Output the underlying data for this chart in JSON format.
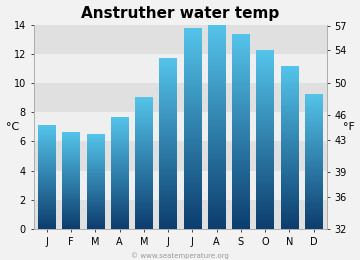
{
  "title": "Anstruther water temp",
  "months": [
    "J",
    "F",
    "M",
    "A",
    "M",
    "J",
    "J",
    "A",
    "S",
    "O",
    "N",
    "D"
  ],
  "values_c": [
    7.1,
    6.6,
    6.5,
    7.6,
    9.0,
    11.7,
    13.7,
    13.9,
    13.3,
    12.2,
    11.1,
    9.2
  ],
  "ylim_c": [
    0,
    14
  ],
  "yticks_c": [
    0,
    2,
    4,
    6,
    8,
    10,
    12,
    14
  ],
  "yticks_f": [
    32,
    36,
    39,
    43,
    46,
    50,
    54,
    57
  ],
  "ylabel_left": "°C",
  "ylabel_right": "°F",
  "bar_color_top": "#55c4ea",
  "bar_color_bottom": "#0c3d6e",
  "fig_bg_color": "#f2f2f2",
  "plot_bg_color": "#e8e8e8",
  "stripe_light": "#efefef",
  "stripe_dark": "#e0e0e0",
  "title_fontsize": 11,
  "axis_fontsize": 7,
  "label_fontsize": 8,
  "watermark": "© www.seatemperature.org"
}
